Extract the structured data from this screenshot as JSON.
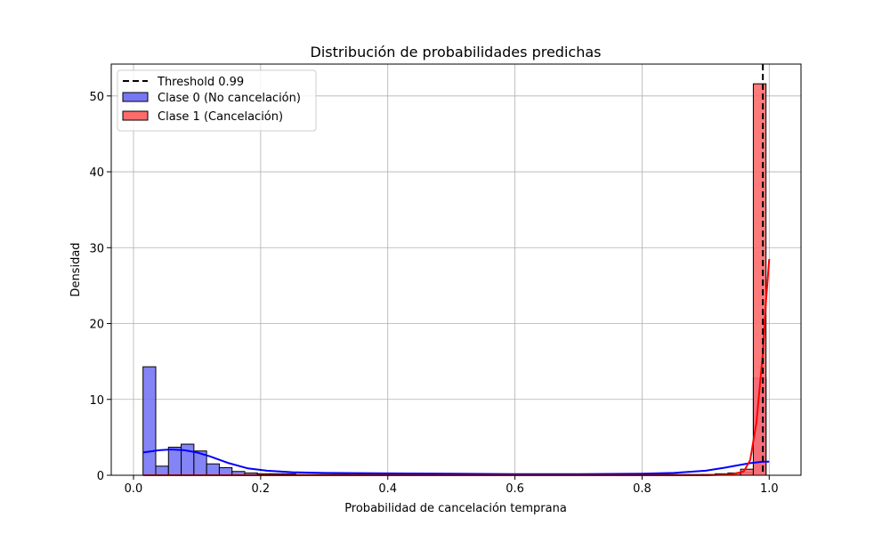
{
  "chart_data": {
    "type": "histogram",
    "title": "Distribución de probabilidades predichas",
    "xlabel": "Probabilidad de cancelación temprana",
    "ylabel": "Densidad",
    "xlim": [
      -0.035,
      1.05
    ],
    "ylim": [
      0,
      54.2
    ],
    "xticks": [
      0.0,
      0.2,
      0.4,
      0.6,
      0.8,
      1.0
    ],
    "xtick_labels": [
      "0.0",
      "0.2",
      "0.4",
      "0.6",
      "0.8",
      "1.0"
    ],
    "yticks": [
      0,
      10,
      20,
      30,
      40,
      50
    ],
    "ytick_labels": [
      "0",
      "10",
      "20",
      "30",
      "40",
      "50"
    ],
    "grid": true,
    "legend_position": "upper-left",
    "bin_edges": [
      0.015,
      0.035,
      0.055,
      0.075,
      0.095,
      0.115,
      0.135,
      0.155,
      0.175,
      0.195,
      0.215,
      0.235,
      0.255,
      0.275,
      0.295,
      0.315,
      0.335,
      0.355,
      0.375,
      0.395,
      0.415,
      0.435,
      0.455,
      0.475,
      0.495,
      0.515,
      0.535,
      0.555,
      0.575,
      0.595,
      0.615,
      0.635,
      0.655,
      0.675,
      0.695,
      0.715,
      0.735,
      0.755,
      0.775,
      0.795,
      0.815,
      0.835,
      0.855,
      0.875,
      0.895,
      0.915,
      0.935,
      0.955,
      0.975,
      0.995
    ],
    "threshold": {
      "value": 0.99,
      "label": "Threshold 0.99",
      "color": "#000000",
      "style": "dashed"
    },
    "series": [
      {
        "name": "Clase 0 (No cancelación)",
        "fill": "#7777f5",
        "edge": "#000000",
        "kde_color": "#0000ff",
        "densities": [
          14.3,
          1.2,
          3.7,
          4.1,
          3.2,
          1.5,
          1.0,
          0.5,
          0.3,
          0.2,
          0.2,
          0.2,
          0.1,
          0.1,
          0.1,
          0.1,
          0.1,
          0.1,
          0.1,
          0.1,
          0.1,
          0.1,
          0.1,
          0.1,
          0.1,
          0.1,
          0.1,
          0.1,
          0.1,
          0.1,
          0.1,
          0.1,
          0.1,
          0.1,
          0.1,
          0.1,
          0.1,
          0.1,
          0.1,
          0.1,
          0.1,
          0.1,
          0.1,
          0.1,
          0.1,
          0.1,
          0.1,
          0.4,
          12.8
        ],
        "kde": {
          "x": [
            0.015,
            0.04,
            0.06,
            0.08,
            0.1,
            0.12,
            0.15,
            0.18,
            0.21,
            0.25,
            0.3,
            0.4,
            0.5,
            0.6,
            0.7,
            0.8,
            0.85,
            0.9,
            0.93,
            0.95,
            0.97,
            0.99,
            1.0
          ],
          "y": [
            3.0,
            3.3,
            3.4,
            3.3,
            3.0,
            2.5,
            1.6,
            0.9,
            0.6,
            0.4,
            0.3,
            0.25,
            0.2,
            0.15,
            0.15,
            0.2,
            0.3,
            0.6,
            1.0,
            1.3,
            1.6,
            1.8,
            1.8
          ]
        }
      },
      {
        "name": "Clase 1 (Cancelación)",
        "fill": "#ff6b6b",
        "edge": "#000000",
        "kde_color": "#ff0000",
        "densities": [
          0.0,
          0.0,
          0.0,
          0.0,
          0.0,
          0.0,
          0.0,
          0.0,
          0.0,
          0.0,
          0.0,
          0.0,
          0.0,
          0.0,
          0.0,
          0.0,
          0.0,
          0.0,
          0.0,
          0.0,
          0.0,
          0.0,
          0.0,
          0.0,
          0.0,
          0.0,
          0.0,
          0.0,
          0.0,
          0.0,
          0.0,
          0.0,
          0.0,
          0.0,
          0.0,
          0.0,
          0.0,
          0.0,
          0.0,
          0.0,
          0.0,
          0.0,
          0.0,
          0.0,
          0.0,
          0.2,
          0.3,
          0.8,
          51.6
        ],
        "kde": {
          "x": [
            0.015,
            0.5,
            0.9,
            0.94,
            0.96,
            0.97,
            0.98,
            0.99,
            0.995,
            1.0
          ],
          "y": [
            0.0,
            0.0,
            0.0,
            0.1,
            0.5,
            2.0,
            7.0,
            16.0,
            23.0,
            28.5
          ]
        }
      }
    ]
  }
}
